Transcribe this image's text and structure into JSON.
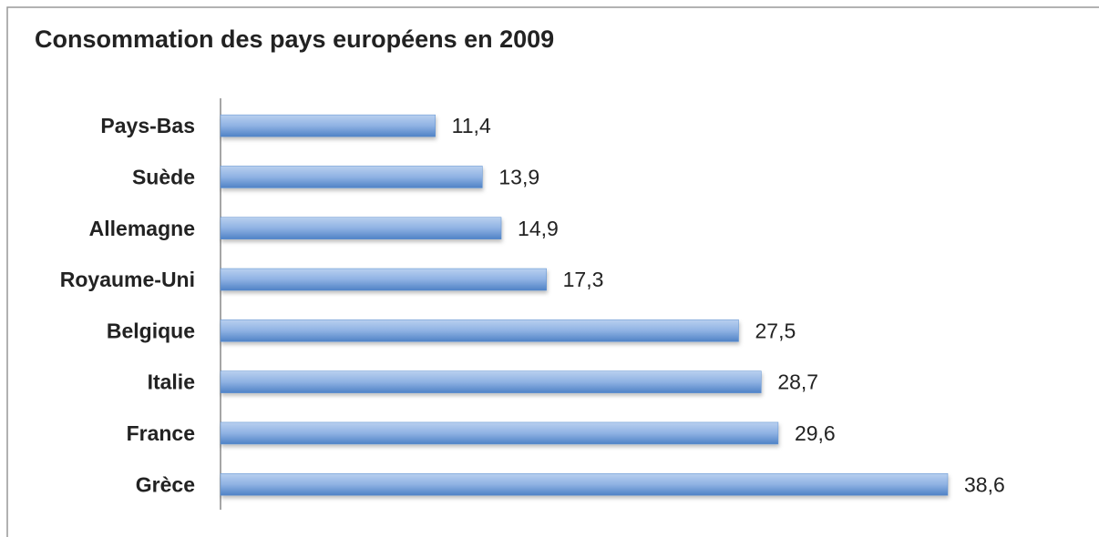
{
  "chart_data": {
    "type": "bar",
    "orientation": "horizontal",
    "title": "Consommation des pays européens en 2009",
    "categories": [
      "Pays-Bas",
      "Suède",
      "Allemagne",
      "Royaume-Uni",
      "Belgique",
      "Italie",
      "France",
      "Grèce"
    ],
    "values": [
      11.4,
      13.9,
      14.9,
      17.3,
      27.5,
      28.7,
      29.6,
      38.6
    ],
    "value_labels": [
      "11,4",
      "13,9",
      "14,9",
      "17,3",
      "27,5",
      "28,7",
      "29,6",
      "38,6"
    ],
    "color": "#5b8fd0"
  }
}
